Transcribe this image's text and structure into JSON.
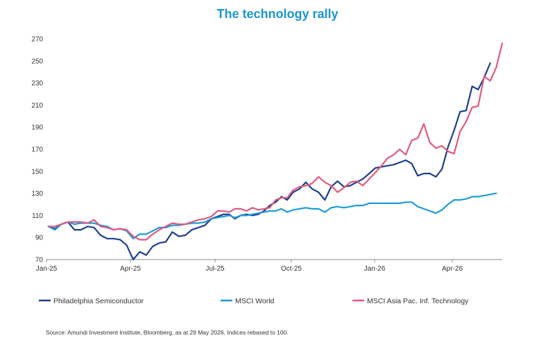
{
  "title": "The technology rally",
  "source": "Source: Amundi Investment Institute, Bloomberg, as at 29 May  2026. Indices rebased to 100.",
  "chart_data": {
    "type": "line",
    "title": "The technology rally",
    "x_ticks": [
      "Jan-25",
      "Apr-25",
      "Jul-25",
      "Oct-25",
      "Jan-26",
      "Apr-26"
    ],
    "x_range": [
      "2025-01-01",
      "2026-05-29"
    ],
    "ylim": [
      70,
      270
    ],
    "y_ticks": [
      70,
      90,
      110,
      130,
      150,
      170,
      190,
      210,
      230,
      250,
      270
    ],
    "grid": false,
    "legend_position": "bottom",
    "x": [
      "2025-01-03",
      "2025-01-10",
      "2025-01-17",
      "2025-01-24",
      "2025-01-31",
      "2025-02-07",
      "2025-02-14",
      "2025-02-21",
      "2025-02-28",
      "2025-03-07",
      "2025-03-14",
      "2025-03-21",
      "2025-03-28",
      "2025-04-04",
      "2025-04-11",
      "2025-04-18",
      "2025-04-25",
      "2025-05-02",
      "2025-05-09",
      "2025-05-16",
      "2025-05-23",
      "2025-05-30",
      "2025-06-06",
      "2025-06-13",
      "2025-06-20",
      "2025-06-27",
      "2025-07-04",
      "2025-07-11",
      "2025-07-18",
      "2025-07-25",
      "2025-08-01",
      "2025-08-08",
      "2025-08-15",
      "2025-08-22",
      "2025-08-29",
      "2025-09-05",
      "2025-09-12",
      "2025-09-19",
      "2025-09-26",
      "2025-10-03",
      "2025-10-10",
      "2025-10-17",
      "2025-10-24",
      "2025-10-31",
      "2025-11-07",
      "2025-11-14",
      "2025-11-21",
      "2025-11-28",
      "2025-12-05",
      "2025-12-12",
      "2025-12-19",
      "2025-12-26",
      "2026-01-02",
      "2026-01-09",
      "2026-01-16",
      "2026-01-23",
      "2026-01-30",
      "2026-02-06",
      "2026-02-13",
      "2026-02-20",
      "2026-02-27",
      "2026-03-06",
      "2026-03-13",
      "2026-03-20",
      "2026-03-27",
      "2026-04-03",
      "2026-04-10",
      "2026-04-17",
      "2026-04-24",
      "2026-05-01",
      "2026-05-08",
      "2026-05-15",
      "2026-05-22",
      "2026-05-29"
    ],
    "series": [
      {
        "name": "Philadelphia Semiconductor",
        "color": "#1c3f8c",
        "values": [
          100,
          98,
          102,
          104,
          97,
          97,
          100,
          99,
          92,
          89,
          89,
          88,
          83,
          70,
          77,
          74,
          82,
          85,
          86,
          95,
          91,
          92,
          97,
          99,
          101,
          107,
          109,
          111,
          111,
          107,
          110,
          111,
          110,
          111,
          114,
          119,
          122,
          127,
          124,
          131,
          134,
          140,
          134,
          131,
          124,
          136,
          141,
          136,
          137,
          140,
          143,
          148,
          153,
          154,
          155,
          156,
          158,
          160,
          157,
          146,
          148,
          148,
          145,
          152,
          172,
          187,
          204,
          205,
          227,
          224,
          235,
          248,
          null,
          null
        ]
      },
      {
        "name": "MSCI World",
        "color": "#1e9ad8",
        "values": [
          100,
          97,
          102,
          104,
          102,
          103,
          103,
          103,
          101,
          100,
          97,
          98,
          96,
          89,
          93,
          93,
          96,
          99,
          99,
          101,
          101,
          102,
          103,
          103,
          104,
          107,
          108,
          109,
          110,
          108,
          110,
          110,
          111,
          112,
          113,
          114,
          114,
          116,
          113,
          115,
          116,
          117,
          116,
          116,
          113,
          117,
          118,
          117,
          118,
          119,
          119,
          121,
          121,
          121,
          121,
          121,
          121,
          122,
          122,
          118,
          116,
          114,
          112,
          115,
          120,
          124,
          124,
          125,
          127,
          127,
          128,
          129,
          130,
          null
        ]
      },
      {
        "name": "MSCI Asia Pac. Inf. Technology",
        "color": "#e0597e",
        "values": [
          100,
          100,
          102,
          104,
          104,
          104,
          103,
          106,
          100,
          99,
          97,
          98,
          97,
          91,
          88,
          88,
          93,
          97,
          100,
          103,
          102,
          102,
          104,
          106,
          107,
          109,
          114,
          114,
          113,
          116,
          116,
          114,
          117,
          115,
          116,
          117,
          124,
          126,
          126,
          133,
          136,
          137,
          139,
          145,
          140,
          137,
          131,
          135,
          140,
          141,
          137,
          143,
          149,
          155,
          162,
          165,
          170,
          165,
          178,
          180,
          193,
          176,
          171,
          173,
          168,
          166,
          186,
          195,
          208,
          209,
          236,
          232,
          244,
          266
        ]
      }
    ]
  }
}
